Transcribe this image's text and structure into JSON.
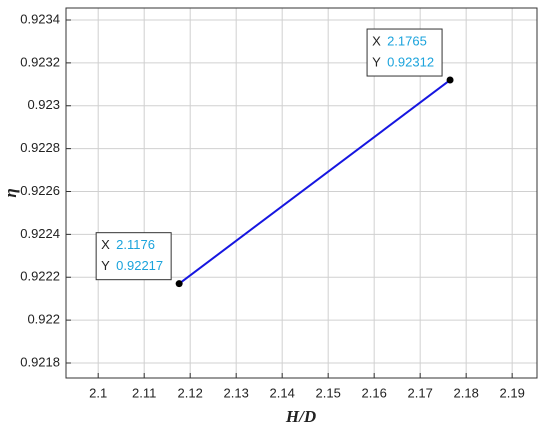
{
  "chart_data": {
    "type": "line",
    "x": [
      2.1176,
      2.1765
    ],
    "series": [
      {
        "color": "#1616e0",
        "values": [
          0.92217,
          0.92312
        ]
      }
    ],
    "marker_color": "#000000",
    "xlabel": "H/D",
    "ylabel": "η",
    "xlim": [
      2.093,
      2.1954
    ],
    "xticks": [
      2.1,
      2.11,
      2.12,
      2.13,
      2.14,
      2.15,
      2.16,
      2.17,
      2.18,
      2.19
    ],
    "ylim": [
      0.92173,
      0.923456
    ],
    "yticks": [
      0.9218,
      0.922,
      0.9222,
      0.9224,
      0.9226,
      0.9228,
      0.923,
      0.9232,
      0.9234
    ],
    "grid": true,
    "datatip_labels": [
      "X",
      "Y"
    ]
  }
}
